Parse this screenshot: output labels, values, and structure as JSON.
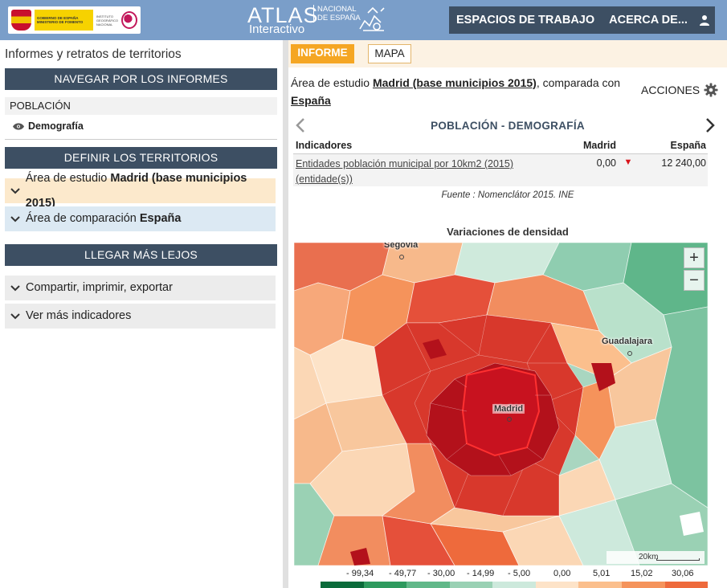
{
  "header": {
    "gov_logo_text": "GOBIERNO DE ESPAÑA",
    "gov_ministry_text": "MINISTERIO DE FOMENTO",
    "gov_institute_text": "INSTITUTO GEOGRÁFICO NACIONAL",
    "atlas_word": "ATLAS",
    "atlas_sub": "Interactivo",
    "atlas_nat": "NACIONAL DE ESPAÑA",
    "nav_workspaces": "ESPACIOS DE TRABAJO",
    "nav_about": "ACERCA DE...",
    "user_icon": "user-icon"
  },
  "sidebar": {
    "title": "Informes y retratos de territorios",
    "section_browse": "NAVEGAR POR LOS INFORMES",
    "category": "POBLACIÓN",
    "report": "Demografía",
    "section_territories": "DEFINIR LOS TERRITORIOS",
    "study_prefix": "Área de estudio ",
    "study_name": "Madrid (base municipios 2015)",
    "compare_prefix": "Área de comparación ",
    "compare_name": "España",
    "section_further": "LLEGAR MÁS LEJOS",
    "share": "Compartir, imprimir, exportar",
    "more_indicators": "Ver más indicadores"
  },
  "main": {
    "tabs": [
      {
        "label": "INFORME",
        "active": true
      },
      {
        "label": "MAPA",
        "active": false
      }
    ],
    "study_line_prefix": "Área de estudio ",
    "study_line_name": "Madrid (base municipios 2015)",
    "study_line_mid": ", comparada con ",
    "study_line_compare": "España",
    "actions_label": "ACCIONES",
    "indicator_title": "POBLACIÓN - DEMOGRAFÍA",
    "table": {
      "col_indicators": "Indicadores",
      "col_madrid": "Madrid",
      "col_spain": "España",
      "row_label": "Entidades población municipal por 10km2 (2015) (entidade(s))",
      "row_madrid": "0,00",
      "row_spain": "12 240,00"
    },
    "source": "Fuente : Nomenclátor 2015. INE",
    "map_title": "Variaciones de densidad",
    "map_labels": {
      "segovia": "Segovia",
      "guadalajara": "Guadalajara",
      "madrid": "Madrid"
    },
    "zoom_in": "+",
    "zoom_out": "−",
    "scale_label": "20km",
    "legend_values": [
      "- 99,34",
      "- 49,77",
      "- 30,00",
      "- 14,99",
      "- 5,00",
      "0,00",
      "5,01",
      "15,02",
      "30,06"
    ],
    "legend_colors": [
      "#0b6b3a",
      "#2e9a5e",
      "#61b889",
      "#9ad1b4",
      "#cde9dc",
      "#fde3c8",
      "#fbbf8d",
      "#f5935b",
      "#ee6a3c"
    ]
  }
}
